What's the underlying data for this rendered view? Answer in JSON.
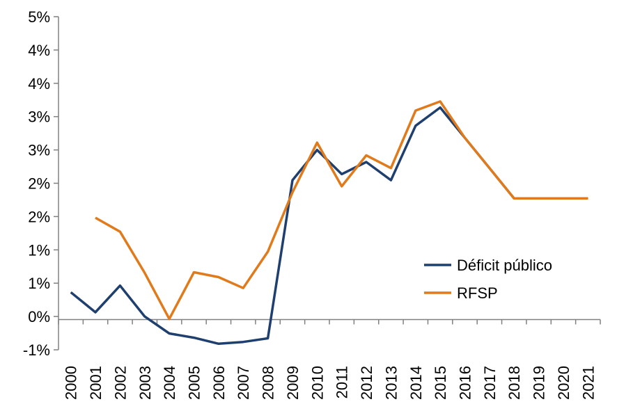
{
  "chart_data": {
    "type": "line",
    "x": [
      "2000",
      "2001",
      "2002",
      "2003",
      "2004",
      "2005",
      "2006",
      "2007",
      "2008",
      "2009",
      "2010",
      "2011",
      "2012",
      "2013",
      "2014",
      "2015",
      "2016",
      "2017",
      "2018",
      "2019",
      "2020",
      "2021"
    ],
    "y_tick_labels": [
      "-1%",
      "0%",
      "1%",
      "1%",
      "2%",
      "2%",
      "3%",
      "3%",
      "4%",
      "4%",
      "5%"
    ],
    "ylim": [
      -0.5,
      5.0
    ],
    "grid": false,
    "legend_position": "lower-right",
    "series": [
      {
        "name": "Déficit público",
        "color": "#1F3F6E",
        "values": [
          0.45,
          0.12,
          0.56,
          0.05,
          -0.23,
          -0.3,
          -0.4,
          -0.37,
          -0.31,
          2.3,
          2.8,
          2.4,
          2.6,
          2.3,
          3.2,
          3.5,
          3.0,
          2.5,
          2.0,
          2.0,
          2.0,
          2.0
        ]
      },
      {
        "name": "RFSP",
        "color": "#E07A1B",
        "values": [
          null,
          1.68,
          1.45,
          0.77,
          0.01,
          0.78,
          0.7,
          0.52,
          1.12,
          2.1,
          2.92,
          2.2,
          2.71,
          2.5,
          3.45,
          3.6,
          3.0,
          2.5,
          2.0,
          2.0,
          2.0,
          2.0
        ]
      }
    ]
  }
}
